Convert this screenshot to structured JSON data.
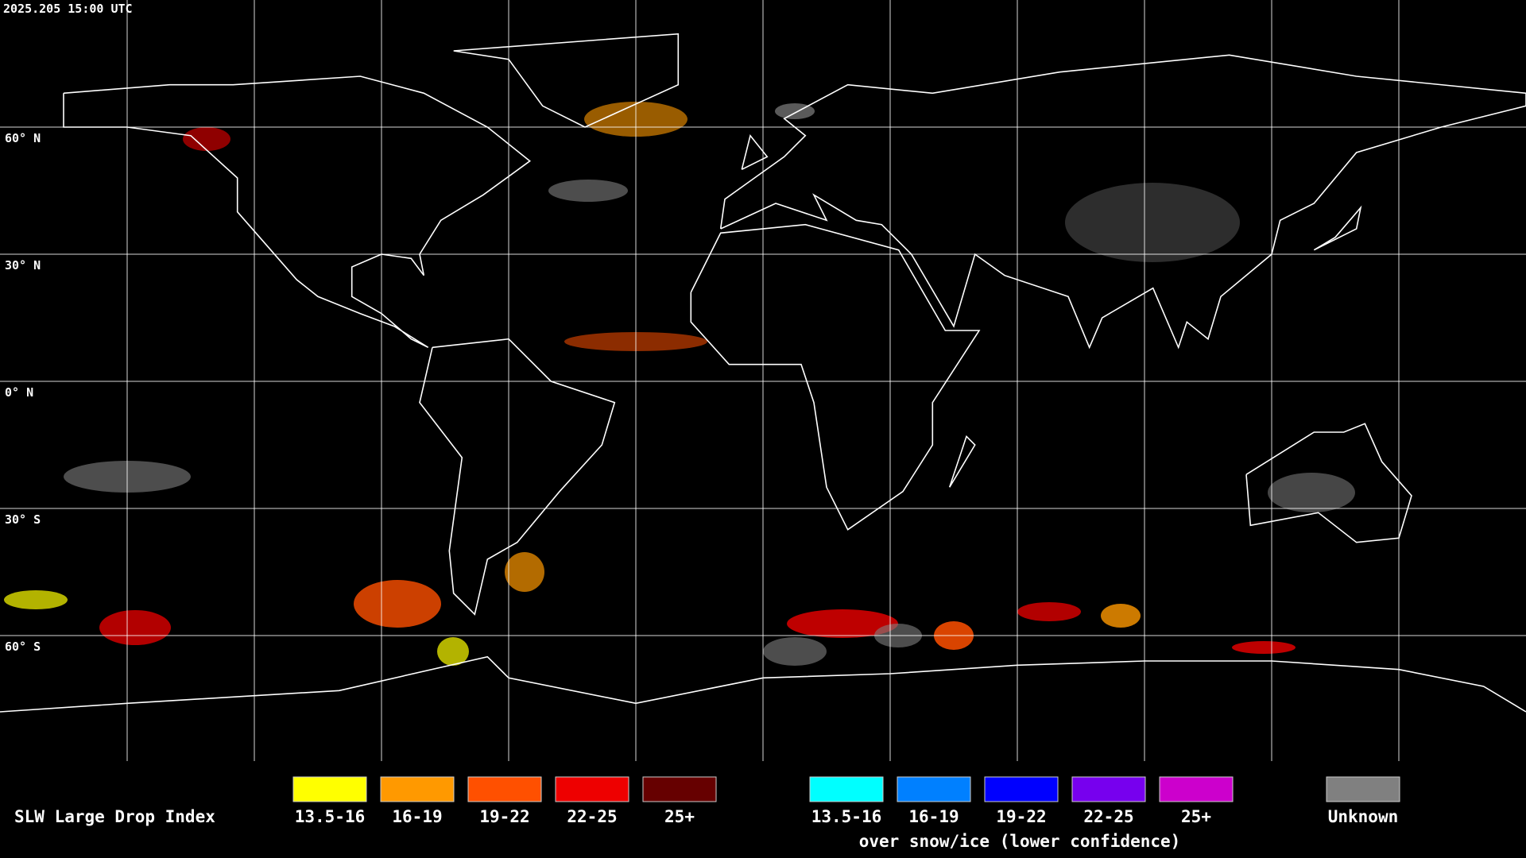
{
  "header": {
    "timestamp": "2025.205 15:00 UTC"
  },
  "map": {
    "latitude_labels": [
      "60° N",
      "30° N",
      "0° N",
      "30° S",
      "60° S"
    ]
  },
  "legend": {
    "title": "SLW Large Drop Index",
    "items": [
      {
        "label": "13.5-16",
        "color": "#ffff00"
      },
      {
        "label": "16-19",
        "color": "#ff9900"
      },
      {
        "label": "19-22",
        "color": "#ff5000"
      },
      {
        "label": "22-25",
        "color": "#ee0000"
      },
      {
        "label": "25+",
        "color": "#660000"
      }
    ],
    "snow_ice_items": [
      {
        "label": "13.5-16",
        "color": "#00ffff"
      },
      {
        "label": "16-19",
        "color": "#0080ff"
      },
      {
        "label": "19-22",
        "color": "#0000ff"
      },
      {
        "label": "22-25",
        "color": "#7700ee"
      },
      {
        "label": "25+",
        "color": "#cc00cc"
      }
    ],
    "snow_ice_caption": "over snow/ice (lower confidence)",
    "unknown": {
      "label": "Unknown",
      "color": "#808080"
    }
  }
}
